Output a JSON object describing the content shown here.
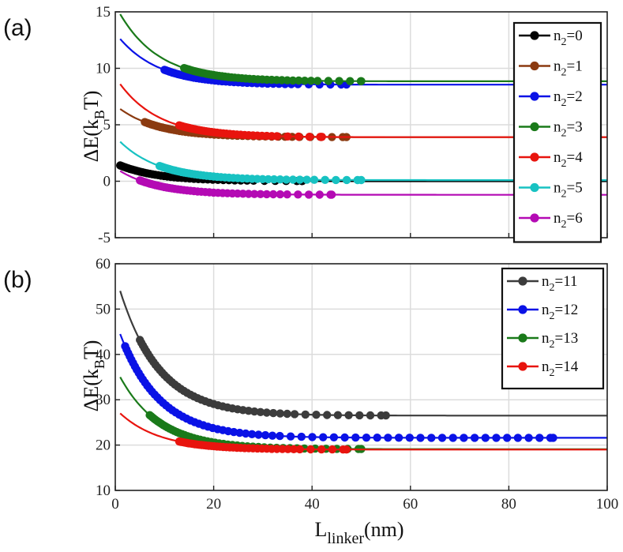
{
  "xlabel_main": "L",
  "xlabel_sub": "linker",
  "xlabel_unit": "(nm)",
  "ylabel_main": "ΔE(k",
  "ylabel_sub": "B",
  "ylabel_unit": "T)",
  "chart_data": [
    {
      "type": "line",
      "panel": "(a)",
      "xlim": [
        0,
        100
      ],
      "ylim": [
        -5,
        15
      ],
      "xticks": [
        0,
        20,
        40,
        60,
        80,
        100
      ],
      "yticks": [
        -5,
        0,
        5,
        10,
        15
      ],
      "grid": true,
      "legend": "right",
      "series": [
        {
          "name": "n2=0",
          "label_main": "n",
          "label_sub": "2",
          "label_rest": "=0",
          "color": "#000000",
          "plateau": 0.0,
          "start": 1.4,
          "pts_from": 1,
          "pts_to": 38
        },
        {
          "name": "n2=1",
          "label_main": "n",
          "label_sub": "2",
          "label_rest": "=1",
          "color": "#8b3a10",
          "plateau": 3.9,
          "start": 6.4,
          "pts_from": 6,
          "pts_to": 47
        },
        {
          "name": "n2=2",
          "label_main": "n",
          "label_sub": "2",
          "label_rest": "=2",
          "color": "#0a12e6",
          "plateau": 8.55,
          "start": 12.6,
          "pts_from": 10,
          "pts_to": 47
        },
        {
          "name": "n2=3",
          "label_main": "n",
          "label_sub": "2",
          "label_rest": "=3",
          "color": "#1a7a1a",
          "plateau": 8.85,
          "start": 14.8,
          "pts_from": 14,
          "pts_to": 50
        },
        {
          "name": "n2=4",
          "label_main": "n",
          "label_sub": "2",
          "label_rest": "=4",
          "color": "#e8140e",
          "plateau": 3.9,
          "start": 8.6,
          "pts_from": 13,
          "pts_to": 42
        },
        {
          "name": "n2=5",
          "label_main": "n",
          "label_sub": "2",
          "label_rest": "=5",
          "color": "#18c2c2",
          "plateau": 0.1,
          "start": 3.5,
          "pts_from": 9,
          "pts_to": 50
        },
        {
          "name": "n2=6",
          "label_main": "n",
          "label_sub": "2",
          "label_rest": "=6",
          "color": "#b40ab4",
          "plateau": -1.2,
          "start": 0.9,
          "pts_from": 5,
          "pts_to": 44
        }
      ]
    },
    {
      "type": "line",
      "panel": "(b)",
      "xlim": [
        0,
        100
      ],
      "ylim": [
        10,
        60
      ],
      "xticks": [
        0,
        20,
        40,
        60,
        80,
        100
      ],
      "yticks": [
        10,
        20,
        30,
        40,
        50,
        60
      ],
      "grid": true,
      "legend": "top-right",
      "series": [
        {
          "name": "n2=11",
          "label_main": "n",
          "label_sub": "2",
          "label_rest": "=11",
          "color": "#3c3c3c",
          "plateau": 26.5,
          "start": 54.0,
          "pts_from": 5,
          "pts_to": 55
        },
        {
          "name": "n2=12",
          "label_main": "n",
          "label_sub": "2",
          "label_rest": "=12",
          "color": "#0a12e6",
          "plateau": 21.6,
          "start": 44.5,
          "pts_from": 2,
          "pts_to": 89
        },
        {
          "name": "n2=13",
          "label_main": "n",
          "label_sub": "2",
          "label_rest": "=13",
          "color": "#1a7a1a",
          "plateau": 19.1,
          "start": 35.0,
          "pts_from": 7,
          "pts_to": 50
        },
        {
          "name": "n2=14",
          "label_main": "n",
          "label_sub": "2",
          "label_rest": "=14",
          "color": "#e8140e",
          "plateau": 19.0,
          "start": 27.0,
          "pts_from": 13,
          "pts_to": 47
        }
      ]
    }
  ]
}
